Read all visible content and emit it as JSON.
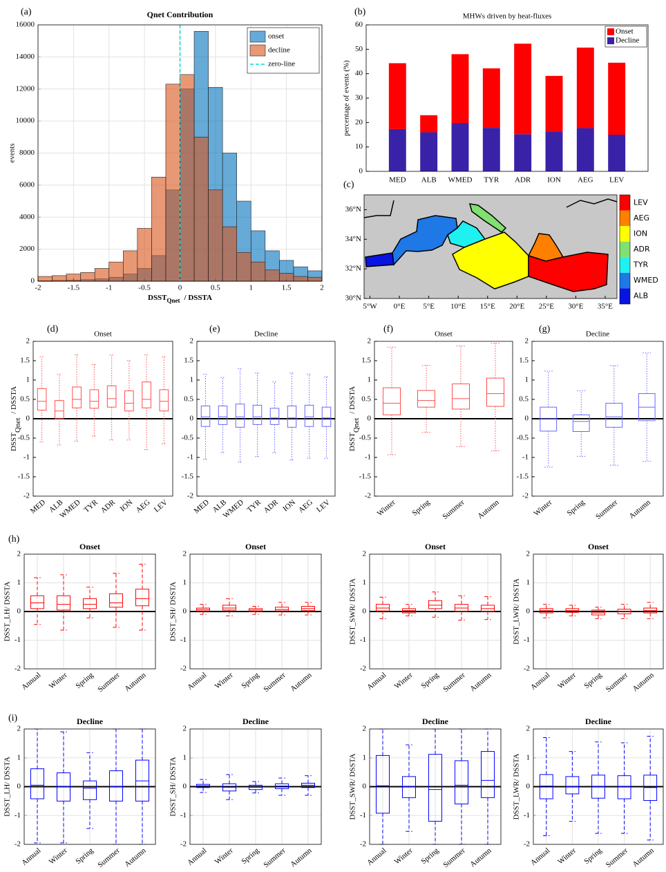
{
  "chart_data": [
    {
      "type": "histogram",
      "label": "(a)",
      "title": "Qnet Contribution",
      "ylabel": "events",
      "xlabel": {
        "main": "DSST",
        "sub": "Qnet",
        "rest": "/  DSSTA"
      },
      "bins": [
        -2,
        -1.8,
        -1.6,
        -1.4,
        -1.2,
        -1,
        -0.8,
        -0.6,
        -0.4,
        -0.2,
        0,
        0.2,
        0.4,
        0.6,
        0.8,
        1,
        1.2,
        1.4,
        1.6,
        1.8,
        2
      ],
      "series": [
        {
          "name": "onset",
          "color": "#0072bd",
          "values": [
            30,
            50,
            70,
            100,
            150,
            250,
            450,
            800,
            1600,
            5700,
            12000,
            15600,
            12100,
            8000,
            5000,
            3150,
            1900,
            1300,
            900,
            650
          ]
        },
        {
          "name": "decline",
          "color": "#d95319",
          "values": [
            300,
            350,
            450,
            550,
            800,
            1200,
            1900,
            3300,
            6500,
            12300,
            12900,
            9000,
            5700,
            3400,
            1800,
            1200,
            700,
            500,
            300,
            250
          ]
        }
      ],
      "zero_line": {
        "name": "zero-line",
        "value": 0,
        "color": "#00d8d8"
      },
      "xlim": [
        -2,
        2
      ],
      "ylim": [
        0,
        16000
      ],
      "xticks": [
        -2,
        -1.5,
        -1,
        -0.5,
        0,
        0.5,
        1,
        1.5,
        2
      ],
      "yticks": [
        0,
        2000,
        4000,
        6000,
        8000,
        10000,
        12000,
        14000,
        16000
      ],
      "grid": true,
      "legend": "upper right"
    },
    {
      "type": "bar",
      "stacked": true,
      "label": "(b)",
      "title": "MHWs driven by heat-fluxes",
      "ylabel": "percentage of events (%)",
      "categories": [
        "MED",
        "ALB",
        "WMED",
        "TYR",
        "ADR",
        "ION",
        "AEG",
        "LEV"
      ],
      "series": [
        {
          "name": "Onset",
          "color": "#ff0000",
          "values": [
            27.0,
            7.0,
            28.2,
            24.4,
            37.1,
            22.8,
            33.0,
            29.5
          ]
        },
        {
          "name": "Decline",
          "color": "#3a22a8",
          "values": [
            17.3,
            16.0,
            19.8,
            17.8,
            15.2,
            16.3,
            17.7,
            15.0
          ]
        }
      ],
      "ylim": [
        0,
        60
      ],
      "yticks": [
        0,
        10,
        20,
        30,
        40,
        50,
        60
      ],
      "grid": false,
      "legend": "upper right"
    },
    {
      "type": "map",
      "label": "(c)",
      "regions": [
        {
          "name": "LEV",
          "color": "#ff0000"
        },
        {
          "name": "AEG",
          "color": "#ff8000"
        },
        {
          "name": "ION",
          "color": "#ffff00"
        },
        {
          "name": "ADR",
          "color": "#80e070"
        },
        {
          "name": "TYR",
          "color": "#1ff0f0"
        },
        {
          "name": "WMED",
          "color": "#1e78e6"
        },
        {
          "name": "ALB",
          "color": "#0a14e0"
        }
      ],
      "xlim": [
        -6,
        37
      ],
      "ylim": [
        30,
        37
      ],
      "xticks": [
        {
          "value": -5,
          "label": "5°W"
        },
        {
          "value": 0,
          "label": "0°E"
        },
        {
          "value": 5,
          "label": "5°E"
        },
        {
          "value": 10,
          "label": "10°E"
        },
        {
          "value": 15,
          "label": "15°E"
        },
        {
          "value": 20,
          "label": "20°E"
        },
        {
          "value": 25,
          "label": "25°E"
        },
        {
          "value": 30,
          "label": "30°E"
        },
        {
          "value": 35,
          "label": "35°E"
        }
      ],
      "yticks": [
        {
          "value": 30,
          "label": "30°N"
        },
        {
          "value": 32,
          "label": "32°N"
        },
        {
          "value": 34,
          "label": "34°N"
        },
        {
          "value": 36,
          "label": "36°N"
        }
      ]
    },
    {
      "type": "box",
      "label": "(d)",
      "title": "Onset",
      "ylabel": {
        "main": "DSST",
        "sub": "Qnet",
        "rest": "/ DSSTA"
      },
      "categories": [
        "MED",
        "ALB",
        "WMED",
        "TYR",
        "ADR",
        "ION",
        "AEG",
        "LEV"
      ],
      "color": "#ff4d4d",
      "whisker_style": "dotted",
      "grid": false,
      "ylim": [
        -2,
        2
      ],
      "yticks": [
        -2,
        -1.5,
        -1,
        -0.5,
        0,
        0.5,
        1,
        1.5,
        2
      ],
      "low": [
        -0.6,
        -0.68,
        -0.58,
        -0.45,
        -0.55,
        -0.55,
        -0.8,
        -0.65
      ],
      "q1": [
        0.22,
        0.0,
        0.28,
        0.27,
        0.3,
        0.2,
        0.28,
        0.2
      ],
      "median": [
        0.45,
        0.2,
        0.5,
        0.45,
        0.52,
        0.4,
        0.5,
        0.45
      ],
      "q3": [
        0.78,
        0.47,
        0.82,
        0.75,
        0.85,
        0.72,
        0.95,
        0.75
      ],
      "high": [
        1.6,
        1.15,
        1.65,
        1.4,
        1.65,
        1.5,
        1.65,
        1.6
      ]
    },
    {
      "type": "box",
      "label": "(e)",
      "title": "Decline",
      "categories": [
        "MED",
        "ALB",
        "WMED",
        "TYR",
        "ADR",
        "ION",
        "AEG",
        "LEV"
      ],
      "color": "#6666ff",
      "whisker_style": "dotted",
      "grid": false,
      "ylim": [
        -2,
        2
      ],
      "yticks": [
        -2,
        -1.5,
        -1,
        -0.5,
        0,
        0.5,
        1,
        1.5,
        2
      ],
      "low": [
        -1.05,
        -0.88,
        -1.12,
        -0.98,
        -0.88,
        -1.07,
        -1.02,
        -1.02
      ],
      "q1": [
        -0.2,
        -0.15,
        -0.22,
        -0.15,
        -0.15,
        -0.22,
        -0.2,
        -0.2
      ],
      "median": [
        0.05,
        0.05,
        0.05,
        0.05,
        0.02,
        0.02,
        0.05,
        0.02
      ],
      "q3": [
        0.33,
        0.33,
        0.38,
        0.35,
        0.27,
        0.33,
        0.35,
        0.3
      ],
      "high": [
        1.15,
        1.07,
        1.3,
        1.18,
        0.95,
        1.18,
        1.15,
        1.08
      ]
    },
    {
      "type": "box",
      "label": "(f)",
      "title": "Onset",
      "ylabel": {
        "main": "DSST",
        "sub": "Qnet",
        "rest": "/ DSSTA"
      },
      "categories": [
        "Winter",
        "Spring",
        "Summer",
        "Autumn"
      ],
      "color": "#ff4d4d",
      "whisker_style": "dotted",
      "grid": false,
      "ylim": [
        -2,
        2
      ],
      "yticks": [
        -2,
        -1.5,
        -1,
        -0.5,
        0,
        0.5,
        1,
        1.5,
        2
      ],
      "low": [
        -0.93,
        -0.35,
        -0.72,
        -0.83
      ],
      "q1": [
        0.1,
        0.3,
        0.25,
        0.32
      ],
      "median": [
        0.4,
        0.47,
        0.52,
        0.65
      ],
      "q3": [
        0.8,
        0.73,
        0.9,
        1.05
      ],
      "high": [
        1.85,
        1.38,
        1.88,
        1.95
      ]
    },
    {
      "type": "box",
      "label": "(g)",
      "title": "Decline",
      "categories": [
        "Winter",
        "Spring",
        "Summer",
        "Autumn"
      ],
      "color": "#6666ff",
      "whisker_style": "dotted",
      "grid": false,
      "ylim": [
        -2,
        2
      ],
      "yticks": [
        -2,
        -1.5,
        -1,
        -0.5,
        0,
        0.5,
        1,
        1.5,
        2
      ],
      "low": [
        -1.25,
        -0.97,
        -1.2,
        -1.1
      ],
      "q1": [
        -0.32,
        -0.33,
        -0.22,
        -0.05
      ],
      "median": [
        0.0,
        -0.07,
        0.05,
        0.3
      ],
      "q3": [
        0.3,
        0.1,
        0.4,
        0.65
      ],
      "high": [
        1.23,
        0.72,
        1.37,
        1.7
      ]
    },
    {
      "type": "box",
      "label": "(h)",
      "title": "Onset",
      "ylabel": "DSST_LH/ DSSTA",
      "categories": [
        "Annual",
        "Winter",
        "Spring",
        "Summer",
        "Autumn"
      ],
      "color": "#ff0000",
      "whisker_style": "dashed",
      "grid": true,
      "ylim": [
        -2,
        2
      ],
      "yticks": [
        -2,
        -1,
        0,
        1,
        2
      ],
      "low": [
        -0.45,
        -0.65,
        -0.22,
        -0.55,
        -0.65
      ],
      "q1": [
        0.1,
        0.05,
        0.1,
        0.15,
        0.2
      ],
      "median": [
        0.3,
        0.25,
        0.25,
        0.3,
        0.45
      ],
      "q3": [
        0.55,
        0.55,
        0.45,
        0.62,
        0.78
      ],
      "high": [
        1.18,
        1.28,
        0.85,
        1.33,
        1.65
      ]
    },
    {
      "type": "box",
      "title": "Onset",
      "ylabel": "DSST_SH/ DSSTA",
      "categories": [
        "Annual",
        "Winter",
        "Spring",
        "Summer",
        "Autumn"
      ],
      "color": "#ff0000",
      "whisker_style": "dashed",
      "grid": true,
      "ylim": [
        -2,
        2
      ],
      "yticks": [
        -2,
        -1,
        0,
        1,
        2
      ],
      "low": [
        -0.1,
        -0.15,
        -0.1,
        -0.12,
        -0.12
      ],
      "q1": [
        0.02,
        0.05,
        0.0,
        0.02,
        0.03
      ],
      "median": [
        0.07,
        0.12,
        0.05,
        0.07,
        0.1
      ],
      "q3": [
        0.12,
        0.22,
        0.1,
        0.15,
        0.18
      ],
      "high": [
        0.25,
        0.45,
        0.18,
        0.32,
        0.32
      ]
    },
    {
      "type": "box",
      "title": "Onset",
      "ylabel": "DSST_SWR/ DSSTA",
      "categories": [
        "Annual",
        "Winter",
        "Spring",
        "Summer",
        "Autumn"
      ],
      "color": "#ff0000",
      "whisker_style": "dashed",
      "grid": true,
      "ylim": [
        -2,
        2
      ],
      "yticks": [
        -2,
        -1,
        0,
        1,
        2
      ],
      "low": [
        -0.25,
        -0.15,
        -0.2,
        -0.3,
        -0.28
      ],
      "q1": [
        0.02,
        -0.05,
        0.1,
        0.0,
        0.0
      ],
      "median": [
        0.12,
        0.03,
        0.22,
        0.12,
        0.1
      ],
      "q3": [
        0.25,
        0.1,
        0.38,
        0.25,
        0.22
      ],
      "high": [
        0.5,
        0.25,
        0.68,
        0.55,
        0.52
      ]
    },
    {
      "type": "box",
      "title": "Onset",
      "ylabel": "DSST_LWR/ DSSTA",
      "categories": [
        "Annual",
        "Winter",
        "Spring",
        "Summer",
        "Autumn"
      ],
      "color": "#ff0000",
      "whisker_style": "dashed",
      "grid": true,
      "ylim": [
        -2,
        2
      ],
      "yticks": [
        -2,
        -1,
        0,
        1,
        2
      ],
      "low": [
        -0.22,
        -0.15,
        -0.25,
        -0.25,
        -0.25
      ],
      "q1": [
        -0.05,
        -0.03,
        -0.12,
        -0.08,
        -0.05
      ],
      "median": [
        0.03,
        0.03,
        -0.05,
        0.0,
        0.03
      ],
      "q3": [
        0.1,
        0.1,
        0.05,
        0.08,
        0.12
      ],
      "high": [
        0.25,
        0.22,
        0.15,
        0.25,
        0.32
      ]
    },
    {
      "type": "box",
      "label": "(i)",
      "title": "Decline",
      "ylabel": "DSST_LH/ DSSTA",
      "categories": [
        "Annual",
        "Winter",
        "Spring",
        "Summer",
        "Autumn"
      ],
      "color": "#0000ff",
      "whisker_style": "dashed",
      "grid": true,
      "ylim": [
        -2,
        2
      ],
      "yticks": [
        -2,
        -1,
        0,
        1,
        2
      ],
      "low": [
        -1.95,
        -1.95,
        -1.45,
        -2,
        -2
      ],
      "q1": [
        -0.42,
        -0.5,
        -0.45,
        -0.5,
        -0.5
      ],
      "median": [
        0.05,
        0.0,
        -0.05,
        0.0,
        0.2
      ],
      "q3": [
        0.62,
        0.48,
        0.2,
        0.55,
        0.92
      ],
      "high": [
        2,
        1.9,
        1.18,
        2,
        2
      ]
    },
    {
      "type": "box",
      "title": "Decline",
      "ylabel": "DSST_SH/ DSSTA",
      "categories": [
        "Annual",
        "Winter",
        "Spring",
        "Summer",
        "Autumn"
      ],
      "color": "#0000ff",
      "whisker_style": "dashed",
      "grid": true,
      "ylim": [
        -2,
        2
      ],
      "yticks": [
        -2,
        -1,
        0,
        1,
        2
      ],
      "low": [
        -0.2,
        -0.45,
        -0.22,
        -0.3,
        -0.3
      ],
      "q1": [
        -0.03,
        -0.15,
        -0.1,
        -0.07,
        -0.03
      ],
      "median": [
        0.03,
        -0.02,
        -0.02,
        0.02,
        0.05
      ],
      "q3": [
        0.08,
        0.1,
        0.05,
        0.1,
        0.12
      ],
      "high": [
        0.25,
        0.42,
        0.18,
        0.3,
        0.38
      ]
    },
    {
      "type": "box",
      "title": "Decline",
      "ylabel": "DSST_SWR/ DSSTA",
      "categories": [
        "Annual",
        "Winter",
        "Spring",
        "Summer",
        "Autumn"
      ],
      "color": "#0000ff",
      "whisker_style": "dashed",
      "grid": true,
      "ylim": [
        -2,
        2
      ],
      "yticks": [
        -2,
        -1,
        0,
        1,
        2
      ],
      "low": [
        -2,
        -1.55,
        -2,
        -2,
        -2
      ],
      "q1": [
        -0.92,
        -0.38,
        -1.2,
        -0.6,
        -0.38
      ],
      "median": [
        0.03,
        0.0,
        -0.1,
        0.05,
        0.22
      ],
      "q3": [
        1.08,
        0.35,
        1.12,
        0.9,
        1.22
      ],
      "high": [
        2,
        1.45,
        2,
        2,
        2
      ]
    },
    {
      "type": "box",
      "title": "Decline",
      "ylabel": "DSST_LWR/ DSSTA",
      "categories": [
        "Annual",
        "Winter",
        "Spring",
        "Summer",
        "Autumn"
      ],
      "color": "#0000ff",
      "whisker_style": "dashed",
      "grid": true,
      "ylim": [
        -2,
        2
      ],
      "yticks": [
        -2,
        -1,
        0,
        1,
        2
      ],
      "low": [
        -1.7,
        -1.2,
        -1.62,
        -1.62,
        -1.85
      ],
      "q1": [
        -0.42,
        -0.25,
        -0.4,
        -0.42,
        -0.48
      ],
      "median": [
        0.02,
        0.0,
        0.0,
        0.0,
        -0.03
      ],
      "q3": [
        0.42,
        0.35,
        0.4,
        0.38,
        0.4
      ],
      "high": [
        1.7,
        1.22,
        1.55,
        1.52,
        1.75
      ]
    }
  ]
}
